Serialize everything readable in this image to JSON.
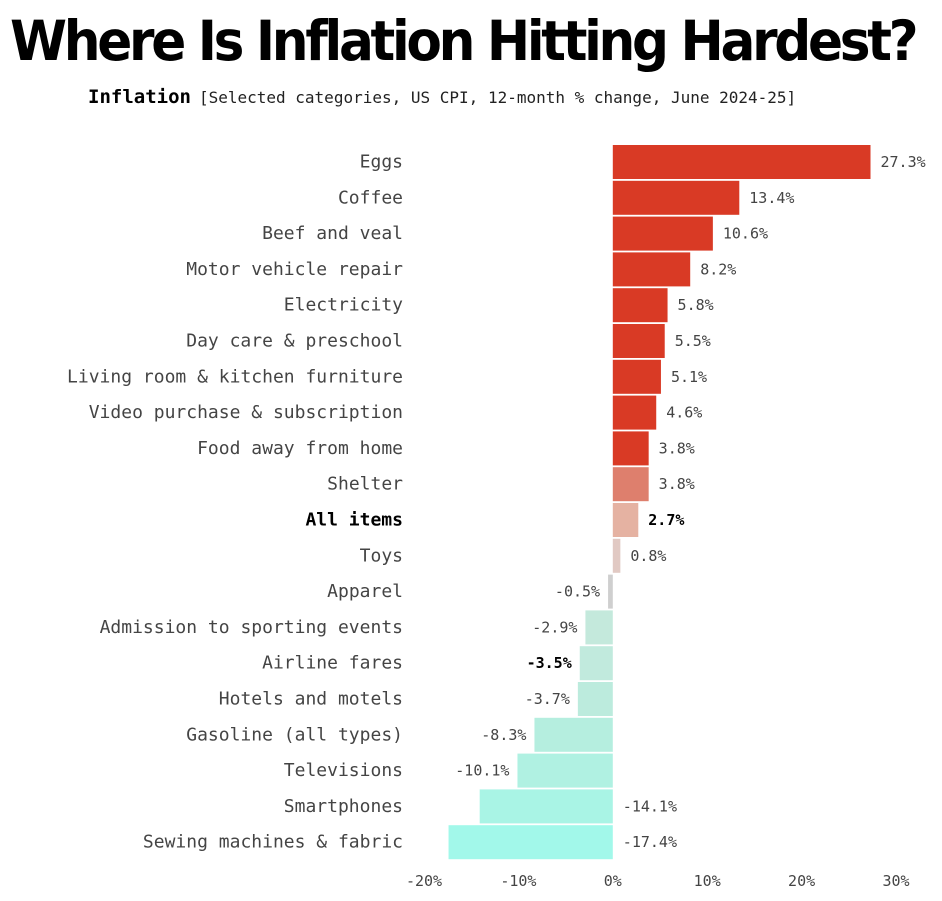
{
  "header": {
    "title": "Where Is Inflation Hitting Hardest?",
    "subtitle_lead": "Inflation",
    "subtitle_detail": "[Selected categories, US CPI, 12-month % change, June 2024-25]"
  },
  "chart_data": {
    "type": "bar",
    "orientation": "horizontal",
    "title": "Where Is Inflation Hitting Hardest?",
    "subtitle": "Inflation [Selected categories, US CPI, 12-month % change, June 2024-25]",
    "categories": [
      "Eggs",
      "Coffee",
      "Beef and veal",
      "Motor vehicle repair",
      "Electricity",
      "Day care & preschool",
      "Living room & kitchen furniture",
      "Video purchase & subscription",
      "Food away from home",
      "Shelter",
      "All items",
      "Toys",
      "Apparel",
      "Admission to sporting events",
      "Airline fares",
      "Hotels and motels",
      "Gasoline (all types)",
      "Televisions",
      "Smartphones",
      "Sewing machines & fabric"
    ],
    "values": [
      27.3,
      13.4,
      10.6,
      8.2,
      5.8,
      5.5,
      5.1,
      4.6,
      3.8,
      3.8,
      2.7,
      0.8,
      -0.5,
      -2.9,
      -3.5,
      -3.7,
      -8.3,
      -10.1,
      -14.1,
      -17.4
    ],
    "value_labels": [
      "27.3%",
      "13.4%",
      "10.6%",
      "8.2%",
      "5.8%",
      "5.5%",
      "5.1%",
      "4.6%",
      "3.8%",
      "3.8%",
      "2.7%",
      "0.8%",
      "-0.5%",
      "-2.9%",
      "-3.5%",
      "-3.7%",
      "-8.3%",
      "-10.1%",
      "-14.1%",
      "-17.4%"
    ],
    "colors": [
      "#d93a25",
      "#d93a25",
      "#d93a25",
      "#d93a25",
      "#d93a25",
      "#d93a25",
      "#d93a25",
      "#d93a25",
      "#d93a25",
      "#de7f6d",
      "#e5b2a2",
      "#e1c9c3",
      "#cfcfcf",
      "#c4e9dc",
      "#c1eadd",
      "#bcebdd",
      "#b5eedf",
      "#b0f1e2",
      "#a9f4e5",
      "#a2f8ea"
    ],
    "highlight": [
      "All items"
    ],
    "bold_value_labels": [
      "2.7%",
      "-3.5%"
    ],
    "xlim": [
      -20,
      30
    ],
    "xticks": [
      -20,
      -10,
      0,
      10,
      20,
      30
    ],
    "xtick_labels": [
      "-20%",
      "-10%",
      "0%",
      "10%",
      "20%",
      "30%"
    ],
    "grid": false,
    "legend": "none"
  }
}
